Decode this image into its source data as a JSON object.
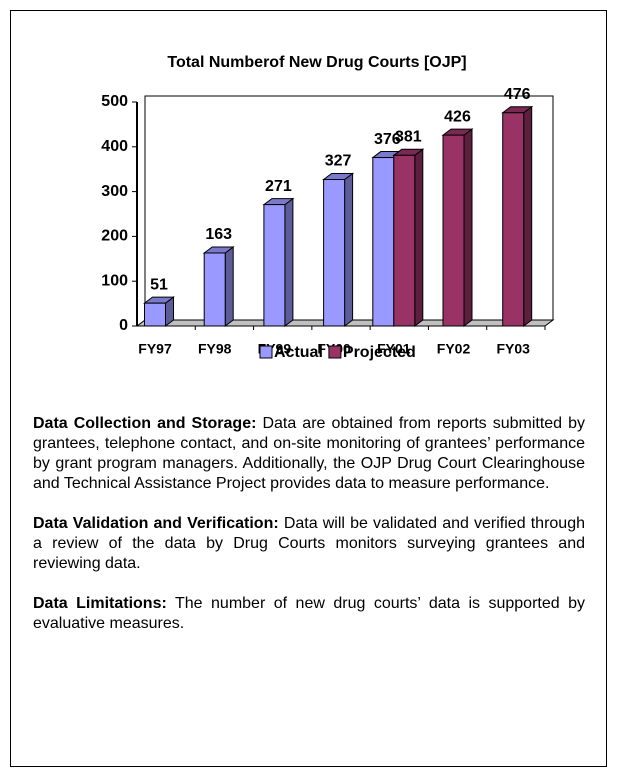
{
  "chart_data": {
    "type": "bar3d",
    "title": "Total Numberof New Drug Courts [OJP]",
    "categories": [
      "FY97",
      "FY98",
      "FY99",
      "FY00",
      "FY01",
      "FY02",
      "FY03"
    ],
    "series": [
      {
        "name": "Actual",
        "color": "#9999ff",
        "values": [
          51,
          163,
          271,
          327,
          376,
          null,
          null
        ]
      },
      {
        "name": "Projected",
        "color": "#993366",
        "values": [
          null,
          null,
          null,
          null,
          381,
          426,
          476
        ]
      }
    ],
    "ylim": [
      0,
      500
    ],
    "yticks": [
      0,
      100,
      200,
      300,
      400,
      500
    ],
    "legend": "bottom"
  },
  "sections": [
    {
      "heading": "Data Collection and Storage:",
      "text": "Data are obtained from reports submitted by grantees, telephone contact, and on-site monitoring of grantees’ performance by grant program managers. Additionally, the OJP Drug Court Clearinghouse and Technical Assistance Project provides data to measure performance."
    },
    {
      "heading": "Data Validation and Verification:",
      "text": "Data will be validated and verified through a review of the data by Drug Courts monitors surveying grantees and reviewing data."
    },
    {
      "heading": "Data Limitations:",
      "text": "The number of new drug courts’ data is supported by evaluative measures."
    }
  ]
}
